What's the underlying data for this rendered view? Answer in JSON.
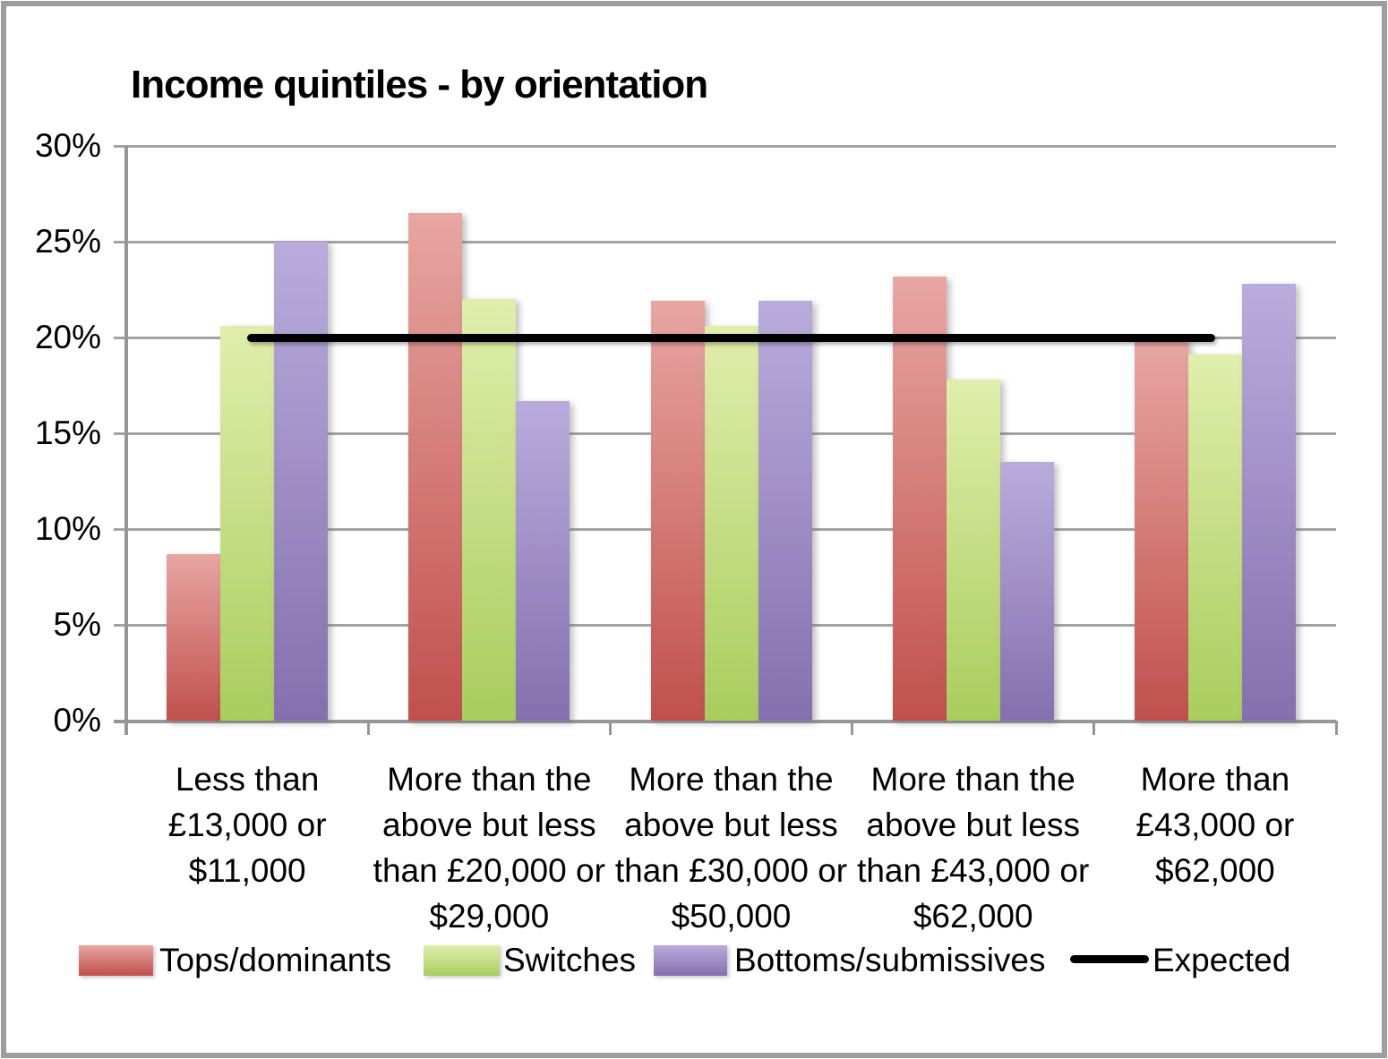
{
  "chart_data": {
    "type": "bar",
    "title": "Income quintiles - by orientation",
    "categories": [
      {
        "label": "Less than £13,000 or $11,000",
        "lines": [
          "Less than",
          "£13,000 or",
          "$11,000"
        ]
      },
      {
        "label": "More than the above but less than £20,000 or $29,000",
        "lines": [
          "More than the",
          "above but less",
          "than £20,000 or",
          "$29,000"
        ]
      },
      {
        "label": "More than the above but less than £30,000 or $50,000",
        "lines": [
          "More than the",
          "above but less",
          "than £30,000 or",
          "$50,000"
        ]
      },
      {
        "label": "More than the above but less than £43,000 or $62,000",
        "lines": [
          "More than the",
          "above but less",
          "than £43,000 or",
          "$62,000"
        ]
      },
      {
        "label": "More than £43,000 or $62,000",
        "lines": [
          "More than",
          "£43,000 or",
          "$62,000"
        ]
      }
    ],
    "series": [
      {
        "name": "Tops/dominants",
        "color_top": "#E8A6A2",
        "color_bottom": "#C0504D",
        "values": [
          8.7,
          26.5,
          21.9,
          23.2,
          19.9
        ]
      },
      {
        "name": "Switches",
        "color_top": "#E0EEAC",
        "color_bottom": "#A9CD5D",
        "values": [
          20.6,
          22.0,
          20.6,
          17.8,
          19.1
        ]
      },
      {
        "name": "Bottoms/submissives",
        "color_top": "#B9ACDC",
        "color_bottom": "#8470AE",
        "values": [
          25.0,
          16.7,
          21.9,
          13.5,
          22.8
        ]
      }
    ],
    "expected_line": {
      "name": "Expected",
      "value": 20,
      "color": "#000000",
      "spans_category_centers": [
        1,
        5
      ]
    },
    "ylabel": "",
    "xlabel": "",
    "ytick_values": [
      0,
      5,
      10,
      15,
      20,
      25,
      30
    ],
    "ytick_labels": [
      "0%",
      "5%",
      "10%",
      "15%",
      "20%",
      "25%",
      "30%"
    ],
    "ylim": [
      0,
      30
    ],
    "grid": true,
    "legend_position": "bottom",
    "colors": {
      "gridline": "#a3a3a3",
      "axis": "#969696",
      "frame_border": "#9d9d9d",
      "text": "#000000",
      "background": "#ffffff"
    }
  }
}
